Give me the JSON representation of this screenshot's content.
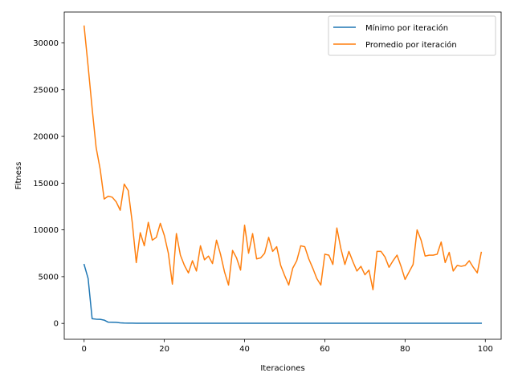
{
  "chart_data": {
    "type": "line",
    "xlabel": "Iteraciones",
    "ylabel": "Fitness",
    "xlim": [
      -4.95,
      103.95
    ],
    "ylim": [
      -1700,
      33300
    ],
    "xticks": [
      0,
      20,
      40,
      60,
      80,
      100
    ],
    "yticks": [
      0,
      5000,
      10000,
      15000,
      20000,
      25000,
      30000
    ],
    "grid": false,
    "legend_position": "top-right",
    "series": [
      {
        "name": "Mínimo por iteración",
        "color": "#1f77b4",
        "x": [
          0,
          1,
          2,
          3,
          4,
          5,
          6,
          7,
          8,
          9,
          10,
          11,
          12,
          13,
          14,
          15,
          16,
          17,
          18,
          19,
          20,
          21,
          22,
          23,
          24,
          25,
          26,
          27,
          28,
          29,
          30,
          31,
          32,
          33,
          34,
          35,
          36,
          37,
          38,
          39,
          40,
          41,
          42,
          43,
          44,
          45,
          46,
          47,
          48,
          49,
          50,
          51,
          52,
          53,
          54,
          55,
          56,
          57,
          58,
          59,
          60,
          61,
          62,
          63,
          64,
          65,
          66,
          67,
          68,
          69,
          70,
          71,
          72,
          73,
          74,
          75,
          76,
          77,
          78,
          79,
          80,
          81,
          82,
          83,
          84,
          85,
          86,
          87,
          88,
          89,
          90,
          91,
          92,
          93,
          94,
          95,
          96,
          97,
          98,
          99
        ],
        "values": [
          6300,
          4800,
          500,
          450,
          430,
          350,
          130,
          120,
          110,
          60,
          40,
          30,
          25,
          20,
          20,
          20,
          20,
          20,
          20,
          20,
          20,
          20,
          20,
          20,
          20,
          15,
          15,
          15,
          20,
          20,
          20,
          15,
          20,
          20,
          20,
          20,
          20,
          20,
          20,
          20,
          20,
          20,
          20,
          20,
          20,
          20,
          15,
          15,
          15,
          15,
          15,
          15,
          15,
          15,
          15,
          15,
          15,
          15,
          15,
          15,
          15,
          15,
          15,
          15,
          15,
          15,
          15,
          15,
          15,
          15,
          15,
          15,
          15,
          15,
          15,
          15,
          15,
          15,
          15,
          15,
          15,
          15,
          15,
          15,
          15,
          15,
          15,
          15,
          15,
          15,
          15,
          15,
          15,
          15,
          15,
          15,
          15,
          15,
          15,
          15
        ]
      },
      {
        "name": "Promedio por iteración",
        "color": "#ff7f0e",
        "x": [
          0,
          1,
          2,
          3,
          4,
          5,
          6,
          7,
          8,
          9,
          10,
          11,
          12,
          13,
          14,
          15,
          16,
          17,
          18,
          19,
          20,
          21,
          22,
          23,
          24,
          25,
          26,
          27,
          28,
          29,
          30,
          31,
          32,
          33,
          34,
          35,
          36,
          37,
          38,
          39,
          40,
          41,
          42,
          43,
          44,
          45,
          46,
          47,
          48,
          49,
          50,
          51,
          52,
          53,
          54,
          55,
          56,
          57,
          58,
          59,
          60,
          61,
          62,
          63,
          64,
          65,
          66,
          67,
          68,
          69,
          70,
          71,
          72,
          73,
          74,
          75,
          76,
          77,
          78,
          79,
          80,
          81,
          82,
          83,
          84,
          85,
          86,
          87,
          88,
          89,
          90,
          91,
          92,
          93,
          94,
          95,
          96,
          97,
          98,
          99
        ],
        "values": [
          31800,
          27500,
          23000,
          18800,
          16500,
          13300,
          13600,
          13500,
          13000,
          12100,
          14900,
          14200,
          10800,
          6500,
          9700,
          8300,
          10800,
          8900,
          9200,
          10700,
          9400,
          7500,
          4200,
          9600,
          7300,
          6200,
          5400,
          6700,
          5600,
          8300,
          6800,
          7200,
          6400,
          8900,
          7400,
          5500,
          4100,
          7800,
          7000,
          5700,
          10500,
          7500,
          9600,
          6900,
          7000,
          7500,
          9200,
          7700,
          8200,
          6200,
          5100,
          4100,
          5900,
          6700,
          8300,
          8200,
          6900,
          5900,
          4800,
          4100,
          7400,
          7300,
          6300,
          10200,
          8000,
          6300,
          7700,
          6600,
          5600,
          6100,
          5200,
          5700,
          3600,
          7700,
          7700,
          7100,
          6000,
          6700,
          7300,
          6100,
          4700,
          5500,
          6300,
          10000,
          8900,
          7200,
          7300,
          7300,
          7400,
          8700,
          6500,
          7600,
          5600,
          6200,
          6100,
          6200,
          6700,
          6000,
          5400,
          7600
        ]
      }
    ]
  }
}
